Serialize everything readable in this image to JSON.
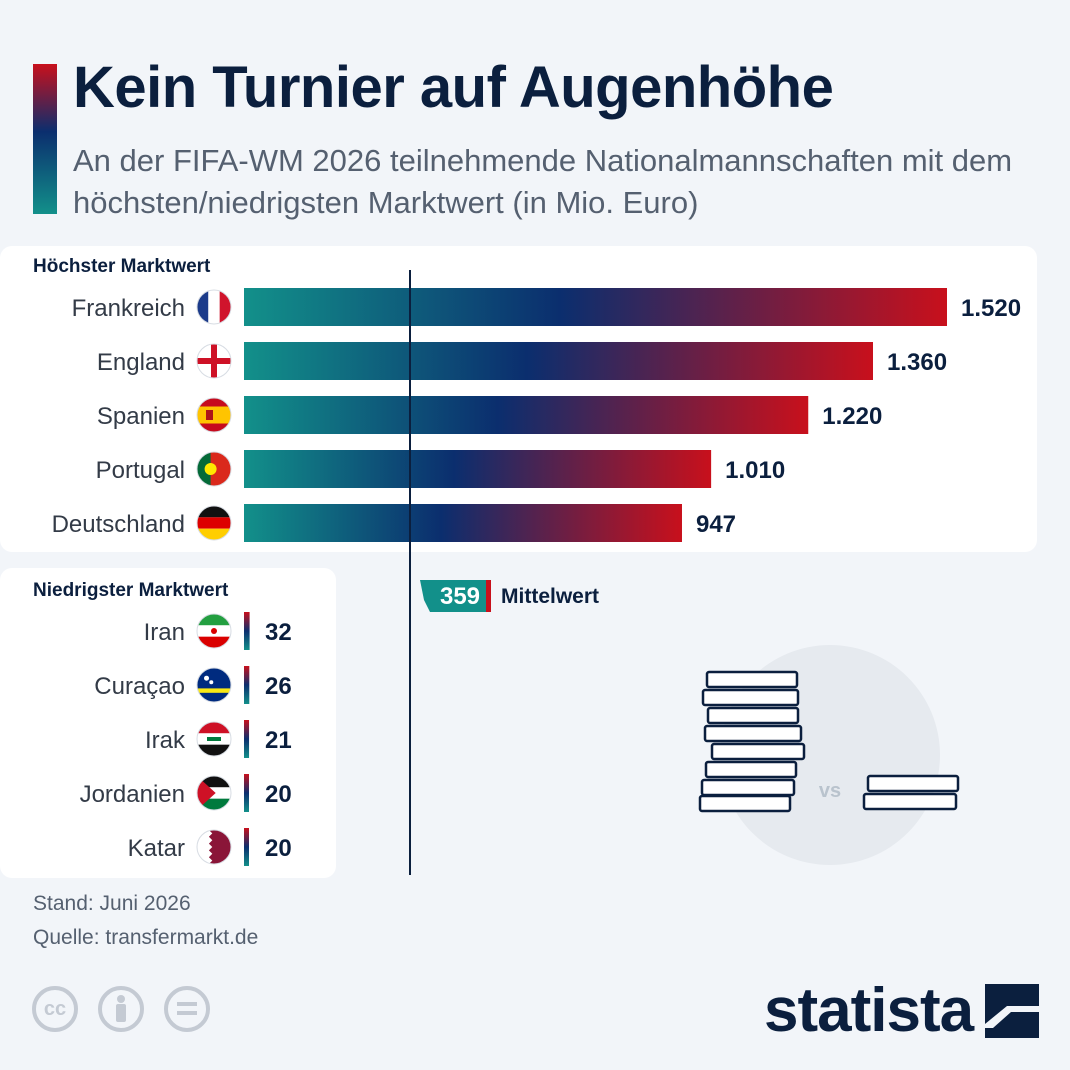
{
  "title": "Kein Turnier auf Augenhöhe",
  "subtitle": "An der FIFA-WM 2026 teilnehmende Nationalmannschaften mit dem höchsten/niedrigsten Marktwert (in Mio. Euro)",
  "sections": {
    "top_label": "Höchster Marktwert",
    "bottom_label": "Niedrigster Marktwert"
  },
  "chart_data": {
    "type": "bar",
    "orientation": "horizontal",
    "unit": "Mio. Euro",
    "groups": [
      {
        "name": "Höchster Marktwert",
        "categories": [
          "Frankreich",
          "England",
          "Spanien",
          "Portugal",
          "Deutschland"
        ],
        "values": [
          1520,
          1360,
          1220,
          1010,
          947
        ],
        "labels": [
          "1.520",
          "1.360",
          "1.220",
          "1.010",
          "947"
        ],
        "flags": [
          "flag-france-icon",
          "flag-england-icon",
          "flag-spain-icon",
          "flag-portugal-icon",
          "flag-germany-icon"
        ]
      },
      {
        "name": "Niedrigster Marktwert",
        "categories": [
          "Iran",
          "Curaçao",
          "Irak",
          "Jordanien",
          "Katar"
        ],
        "values": [
          32,
          26,
          21,
          20,
          20
        ],
        "labels": [
          "32",
          "26",
          "21",
          "20",
          "20"
        ],
        "flags": [
          "flag-iran-icon",
          "flag-curacao-icon",
          "flag-iraq-icon",
          "flag-jordan-icon",
          "flag-qatar-icon"
        ]
      }
    ],
    "reference_line": {
      "value": 359,
      "label": "359",
      "name": "Mittelwert"
    },
    "colors": {
      "gradient_start": "#12908a",
      "gradient_mid": "#0b2e6e",
      "gradient_end": "#c8101c"
    }
  },
  "illustration": {
    "vs_label": "vs",
    "icon": "coin-stacks-icon"
  },
  "footer": {
    "stand": "Stand: Juni 2026",
    "source": "Quelle: transfermarkt.de",
    "license_icons": [
      "cc-icon",
      "attribution-icon",
      "no-derivatives-icon"
    ],
    "brand": "statista"
  }
}
